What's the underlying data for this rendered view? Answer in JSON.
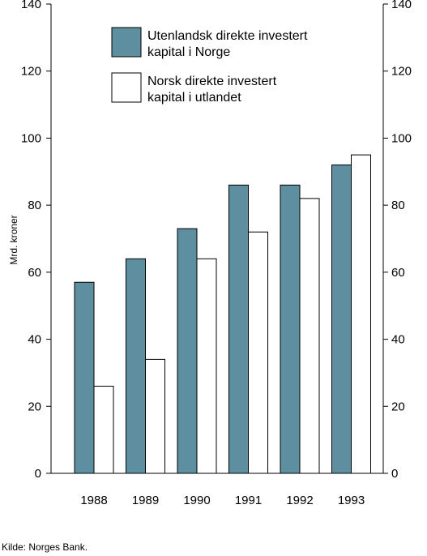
{
  "chart_data": {
    "type": "bar",
    "categories": [
      "1988",
      "1989",
      "1990",
      "1991",
      "1992",
      "1993"
    ],
    "series": [
      {
        "name": "Utenlandsk direkte investert kapital i Norge",
        "name_lines": [
          "Utenlandsk direkte investert",
          "kapital i Norge"
        ],
        "color": "#5e8fa0",
        "values": [
          57,
          64,
          73,
          86,
          86,
          92
        ]
      },
      {
        "name": "Norsk direkte investert kapital i utlandet",
        "name_lines": [
          "Norsk direkte investert",
          "kapital i utlandet"
        ],
        "color": "#ffffff",
        "values": [
          26,
          34,
          64,
          72,
          82,
          95
        ]
      }
    ],
    "ylabel": "Mrd. kroner",
    "xlabel": "",
    "ylim": [
      0,
      140
    ],
    "yticks": [
      0,
      20,
      40,
      60,
      80,
      100,
      120,
      140
    ],
    "grid": false,
    "legend_position": "top-center",
    "axes": "left and right"
  },
  "source": "Kilde: Norges Bank."
}
